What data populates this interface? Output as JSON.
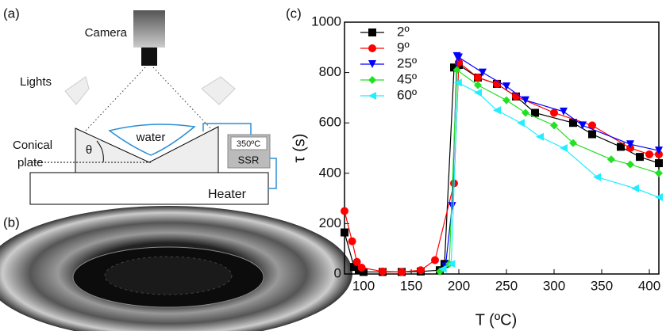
{
  "panel_a": {
    "label": "(a)",
    "camera": "Camera",
    "lights": "Lights",
    "water": "water",
    "plate_line1": "Conical",
    "plate_line2": "plate",
    "angle": "θ",
    "temperature": "350ºC",
    "ssr": "SSR",
    "heater": "Heater"
  },
  "panel_b": {
    "label": "(b)"
  },
  "chart_data": {
    "type": "line",
    "panel_label": "(c)",
    "x_label": "T (ºC)",
    "y_label": "τ (s)",
    "xlim": [
      80,
      410
    ],
    "ylim": [
      0,
      1000
    ],
    "xticks": [
      100,
      150,
      200,
      250,
      300,
      350,
      400
    ],
    "yticks": [
      0,
      200,
      400,
      600,
      800,
      1000
    ],
    "legend": "upper left",
    "series": [
      {
        "name": "2º",
        "color": "#000000",
        "marker": "square",
        "x": [
          80,
          90,
          95,
          100,
          120,
          140,
          160,
          180,
          185,
          195,
          200,
          220,
          240,
          260,
          280,
          320,
          340,
          370,
          390,
          410
        ],
        "values": [
          165,
          28,
          15,
          8,
          8,
          8,
          10,
          15,
          40,
          820,
          830,
          780,
          755,
          705,
          640,
          600,
          555,
          505,
          465,
          440
        ]
      },
      {
        "name": "9º",
        "color": "#ff0000",
        "marker": "circle",
        "x": [
          80,
          88,
          93,
          98,
          120,
          140,
          160,
          175,
          195,
          200,
          220,
          240,
          260,
          300,
          340,
          380,
          400,
          410
        ],
        "values": [
          250,
          130,
          48,
          25,
          10,
          8,
          15,
          55,
          360,
          840,
          780,
          755,
          705,
          640,
          590,
          500,
          475,
          475
        ]
      },
      {
        "name": "25º",
        "color": "#0000ff",
        "marker": "triangle-down",
        "x": [
          186,
          193,
          198,
          200,
          225,
          250,
          270,
          310,
          330,
          380,
          410
        ],
        "values": [
          30,
          270,
          865,
          860,
          800,
          745,
          690,
          645,
          590,
          515,
          490
        ]
      },
      {
        "name": "45º",
        "color": "#22e022",
        "marker": "diamond",
        "x": [
          180,
          190,
          198,
          220,
          250,
          270,
          300,
          320,
          360,
          380,
          410
        ],
        "values": [
          10,
          40,
          810,
          750,
          690,
          640,
          590,
          520,
          455,
          435,
          400
        ]
      },
      {
        "name": "60º",
        "color": "#22eeff",
        "marker": "triangle-left",
        "x": [
          183,
          192,
          199,
          220,
          240,
          265,
          285,
          310,
          345,
          385,
          410
        ],
        "values": [
          20,
          40,
          760,
          720,
          650,
          600,
          545,
          500,
          385,
          340,
          305
        ]
      }
    ]
  }
}
